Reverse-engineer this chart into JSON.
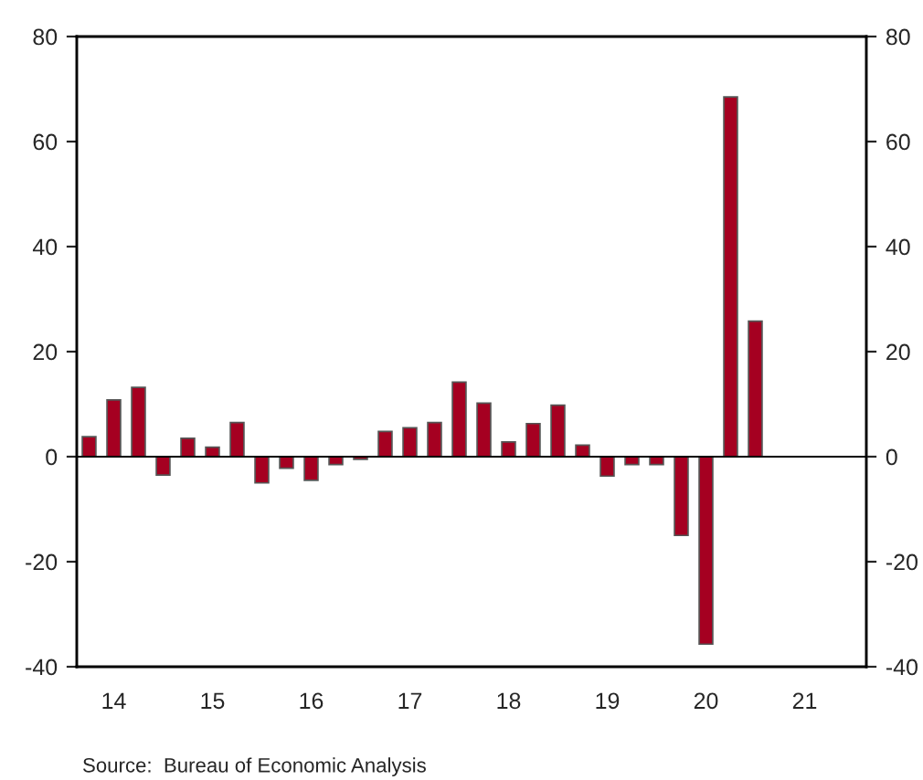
{
  "chart_data": {
    "type": "bar",
    "categories": [
      null,
      "14",
      null,
      null,
      null,
      "15",
      null,
      null,
      null,
      "16",
      null,
      null,
      null,
      "17",
      null,
      null,
      null,
      "18",
      null,
      null,
      null,
      "19",
      null,
      null,
      null,
      "20",
      null,
      null,
      null,
      "21",
      null,
      null
    ],
    "series": [
      {
        "color": "#a50021",
        "values": [
          3.8,
          10.8,
          13.2,
          -3.5,
          3.5,
          1.8,
          6.5,
          -5,
          -2.2,
          -4.5,
          -1.5,
          -0.5,
          4.8,
          5.5,
          6.5,
          14.2,
          10.2,
          2.8,
          6.3,
          9.8,
          2.2,
          -3.7,
          -1.5,
          -1.5,
          -15,
          -35.7,
          68.5,
          25.8,
          null,
          null,
          null,
          null
        ]
      }
    ],
    "ylim": [
      -40,
      80
    ],
    "yticks": [
      -40,
      -20,
      0,
      20,
      40,
      60,
      80
    ],
    "y2lim": [
      -40,
      80
    ],
    "y2ticks": [
      -40,
      -20,
      0,
      20,
      40,
      60,
      80
    ],
    "ref_lines": [
      {
        "axis": "y",
        "value": 0,
        "color": "#000000"
      }
    ],
    "annotations": [
      "Source:  Bureau of Economic Analysis"
    ]
  }
}
